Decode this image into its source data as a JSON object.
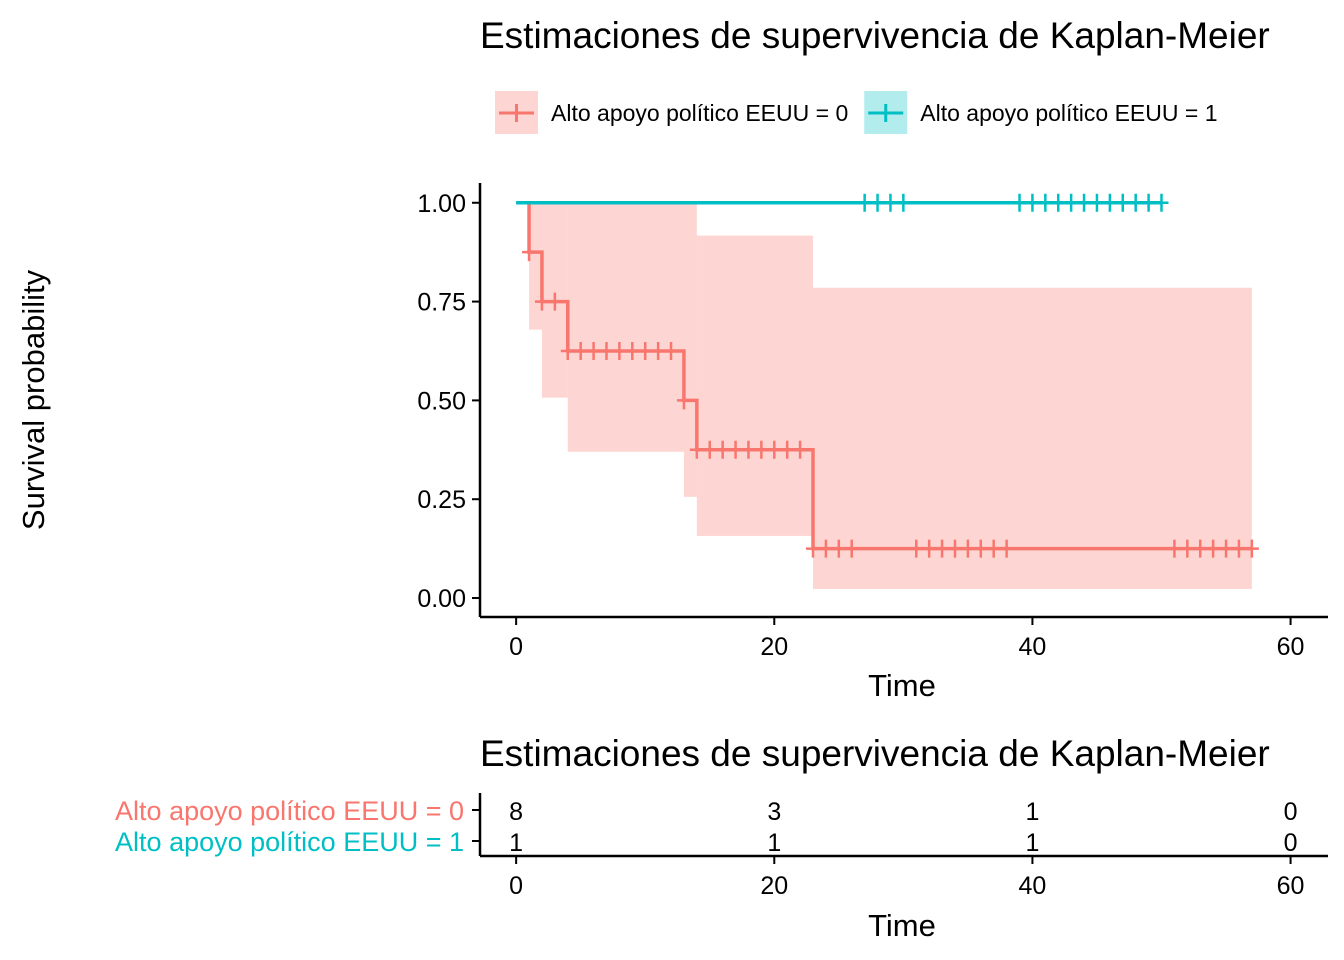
{
  "chart_data": [
    {
      "type": "step",
      "title": "Estimaciones de supervivencia de Kaplan-Meier",
      "x_label": "Time",
      "y_label": "Survival probability",
      "xlim": [
        -2.8,
        62.9
      ],
      "ylim": [
        -0.048,
        1.05
      ],
      "xticks": [
        0,
        20,
        40,
        60
      ],
      "yticks": [
        {
          "value": 0,
          "label": "0.00"
        },
        {
          "value": 0.25,
          "label": "0.25"
        },
        {
          "value": 0.5,
          "label": "0.50"
        },
        {
          "value": 0.75,
          "label": "0.75"
        },
        {
          "value": 1,
          "label": "1.00"
        }
      ],
      "series": [
        {
          "name": "Alto apoyo político EEUU = 0",
          "color": "#F8766D",
          "x": [
            0,
            1,
            2,
            4,
            13,
            14,
            23,
            57
          ],
          "values": [
            1,
            0.875,
            0.75,
            0.625,
            0.5,
            0.375,
            0.125,
            0.125
          ],
          "lower": [
            1,
            0.679,
            0.507,
            0.37,
            0.256,
            0.157,
            0.023,
            0.023
          ],
          "upper": [
            1,
            1,
            1,
            1,
            1,
            0.917,
            0.785,
            0.785
          ],
          "censor_x": [
            1,
            2,
            3,
            4,
            5,
            6,
            7,
            8,
            9,
            10,
            11,
            12,
            13,
            14,
            15,
            16,
            17,
            18,
            19,
            20,
            21,
            22,
            23,
            24,
            25,
            26,
            31,
            32,
            33,
            34,
            35,
            36,
            37,
            38,
            51,
            52,
            53,
            54,
            55,
            56,
            57
          ],
          "censor_y": [
            0.875,
            0.75,
            0.75,
            0.625,
            0.625,
            0.625,
            0.625,
            0.625,
            0.625,
            0.625,
            0.625,
            0.625,
            0.5,
            0.375,
            0.375,
            0.375,
            0.375,
            0.375,
            0.375,
            0.375,
            0.375,
            0.375,
            0.125,
            0.125,
            0.125,
            0.125,
            0.125,
            0.125,
            0.125,
            0.125,
            0.125,
            0.125,
            0.125,
            0.125,
            0.125,
            0.125,
            0.125,
            0.125,
            0.125,
            0.125,
            0.125
          ]
        },
        {
          "name": "Alto apoyo político EEUU = 1",
          "color": "#00BFC4",
          "x": [
            0,
            50
          ],
          "values": [
            1,
            1
          ],
          "censor_x": [
            27,
            28,
            29,
            30,
            39,
            40,
            41,
            42,
            43,
            44,
            45,
            46,
            47,
            48,
            49,
            50
          ],
          "censor_y": [
            1,
            1,
            1,
            1,
            1,
            1,
            1,
            1,
            1,
            1,
            1,
            1,
            1,
            1,
            1,
            1
          ]
        }
      ]
    },
    {
      "type": "risk_table",
      "title": "Estimaciones de supervivencia de Kaplan-Meier",
      "x_label": "Time",
      "xlim": [
        -2.8,
        62.9
      ],
      "xticks": [
        0,
        20,
        40,
        60
      ],
      "series": [
        {
          "name": "Alto apoyo político EEUU = 0",
          "color": "#F8766D",
          "values": [
            8,
            3,
            1,
            0
          ]
        },
        {
          "name": "Alto apoyo político EEUU = 1",
          "color": "#00BFC4",
          "values": [
            1,
            1,
            1,
            0
          ]
        }
      ]
    }
  ]
}
